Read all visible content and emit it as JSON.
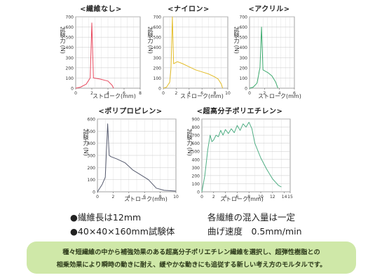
{
  "chart_data": [
    {
      "type": "line",
      "title": "<繊維なし>",
      "xlabel": "ストローク(mm)",
      "ylabel": "試験力 (N)",
      "xlim": [
        0,
        8
      ],
      "ylim": [
        0,
        700
      ],
      "x_ticks": [
        0,
        2,
        4,
        6,
        8
      ],
      "y_ticks": [
        0,
        100,
        200,
        300,
        400,
        500,
        600,
        700
      ],
      "grid": true,
      "color": "#e84a5f",
      "series": [
        {
          "x": [
            0,
            0.6,
            1.3,
            1.8,
            2.0,
            2.2,
            3.0,
            4.0,
            4.5,
            4.7
          ],
          "y": [
            0,
            10,
            40,
            100,
            640,
            100,
            90,
            70,
            30,
            0
          ]
        }
      ]
    },
    {
      "type": "line",
      "title": "<ナイロン>",
      "xlabel": "ストローク(mm)",
      "ylabel": "試験力 (N)",
      "xlim": [
        0,
        10
      ],
      "ylim": [
        0,
        700
      ],
      "x_ticks": [
        0,
        2,
        4,
        6,
        8,
        10
      ],
      "y_ticks": [
        0,
        100,
        200,
        300,
        400,
        500,
        600,
        700
      ],
      "grid": true,
      "color": "#e3bd2a",
      "series": [
        {
          "x": [
            0,
            0.5,
            1.0,
            1.2,
            1.4,
            1.6,
            2.2,
            3.0,
            4.0,
            5.0,
            6.0,
            7.0,
            8.0,
            8.5,
            9.0,
            9.2
          ],
          "y": [
            0,
            10,
            60,
            200,
            700,
            240,
            260,
            240,
            210,
            180,
            160,
            140,
            110,
            90,
            40,
            0
          ]
        }
      ]
    },
    {
      "type": "line",
      "title": "<アクリル>",
      "xlabel": "ストローク(mm)",
      "ylabel": "試験力 (N)",
      "xlim": [
        0,
        6
      ],
      "ylim": [
        0,
        700
      ],
      "x_ticks": [
        0,
        2,
        4,
        6
      ],
      "y_ticks": [
        0,
        100,
        200,
        300,
        400,
        500,
        600,
        700
      ],
      "grid": true,
      "color": "#3caa6e",
      "series": [
        {
          "x": [
            0,
            0.5,
            1.0,
            1.4,
            1.6,
            1.8,
            2.5,
            3.0,
            3.5,
            3.8
          ],
          "y": [
            0,
            10,
            50,
            200,
            600,
            180,
            150,
            120,
            60,
            0
          ]
        }
      ]
    },
    {
      "type": "line",
      "title": "<ポリプロピレン>",
      "xlabel": "ストローク(mm)",
      "ylabel": "試験力 (N)",
      "xlim": [
        0,
        10
      ],
      "ylim": [
        0,
        600
      ],
      "x_ticks": [
        0,
        2,
        4,
        6,
        8,
        10
      ],
      "y_ticks": [
        0,
        100,
        200,
        300,
        400,
        500,
        600
      ],
      "grid": true,
      "color": "#555a6e",
      "series": [
        {
          "x": [
            0,
            0.6,
            1.0,
            1.3,
            1.5,
            1.7,
            2.5,
            3.5,
            4.5,
            5.5,
            6.5,
            7.5,
            8.5,
            9.5,
            10
          ],
          "y": [
            0,
            60,
            120,
            560,
            300,
            290,
            270,
            240,
            180,
            140,
            100,
            30,
            12,
            8,
            6
          ]
        }
      ]
    },
    {
      "type": "line",
      "title": "<超高分子ポリエチレン>",
      "xlabel": "ストローク(mm)",
      "ylabel": "試験力 (N)",
      "xlim": [
        0,
        15
      ],
      "ylim": [
        0,
        900
      ],
      "x_ticks": [
        0,
        2,
        4,
        6,
        8,
        10,
        12,
        14,
        15
      ],
      "y_ticks": [
        0,
        100,
        200,
        300,
        400,
        500,
        600,
        700,
        800,
        900
      ],
      "grid": true,
      "color": "#4fae84",
      "series": [
        {
          "x": [
            0,
            0.5,
            1.0,
            1.4,
            1.7,
            2.0,
            2.4,
            2.8,
            3.2,
            3.6,
            4.0,
            4.5,
            5.0,
            5.5,
            6.0,
            6.5,
            7.0,
            7.5,
            8.0,
            8.5,
            9.0,
            10.0,
            11.0,
            12.0,
            13.0,
            13.5
          ],
          "y": [
            0,
            200,
            520,
            700,
            620,
            640,
            700,
            680,
            760,
            700,
            770,
            720,
            780,
            730,
            820,
            760,
            840,
            800,
            860,
            780,
            600,
            420,
            280,
            160,
            80,
            60
          ]
        }
      ]
    }
  ],
  "notes": {
    "fiber_length": "●繊維長は12mm",
    "specimen": "●40×40×160mm試験体",
    "mix_amount": "各繊維の混入量は一定",
    "bend_speed": "曲げ速度　0.5mm/min"
  },
  "info": {
    "line1": "種々短繊維の中から補強効果のある超高分子ポリエチレン繊維を選択し、超弾性樹脂との",
    "line2": "相乗効果により瞬時の動きに耐え、緩やかな動きにも追従する新しい考え方のモルタルです。"
  }
}
